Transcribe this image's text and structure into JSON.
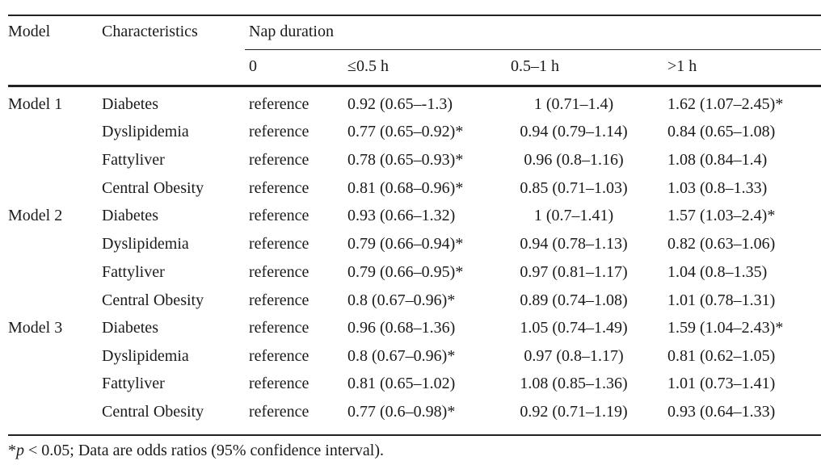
{
  "table": {
    "headers": {
      "model": "Model",
      "characteristics": "Characteristics",
      "nap_duration": "Nap duration",
      "durations": [
        "0",
        "≤0.5 h",
        "0.5–1 h",
        ">1 h"
      ]
    },
    "rows": [
      {
        "model": "Model 1",
        "characteristic": "Diabetes",
        "ref": "reference",
        "v1": "0.92 (0.65–-1.3)",
        "v2": "1 (0.71–1.4)",
        "v3": "1.62 (1.07–2.45)*"
      },
      {
        "model": "",
        "characteristic": "Dyslipidemia",
        "ref": "reference",
        "v1": "0.77 (0.65–0.92)*",
        "v2": "0.94 (0.79–1.14)",
        "v3": "0.84 (0.65–1.08)"
      },
      {
        "model": "",
        "characteristic": "Fattyliver",
        "ref": "reference",
        "v1": "0.78 (0.65–0.93)*",
        "v2": "0.96 (0.8–1.16)",
        "v3": "1.08 (0.84–1.4)"
      },
      {
        "model": "",
        "characteristic": "Central Obesity",
        "ref": "reference",
        "v1": "0.81 (0.68–0.96)*",
        "v2": "0.85 (0.71–1.03)",
        "v3": "1.03 (0.8–1.33)"
      },
      {
        "model": "Model 2",
        "characteristic": "Diabetes",
        "ref": "reference",
        "v1": "0.93 (0.66–1.32)",
        "v2": "1 (0.7–1.41)",
        "v3": "1.57 (1.03–2.4)*"
      },
      {
        "model": "",
        "characteristic": "Dyslipidemia",
        "ref": "reference",
        "v1": "0.79 (0.66–0.94)*",
        "v2": "0.94 (0.78–1.13)",
        "v3": "0.82 (0.63–1.06)"
      },
      {
        "model": "",
        "characteristic": "Fattyliver",
        "ref": "reference",
        "v1": "0.79 (0.66–0.95)*",
        "v2": "0.97 (0.81–1.17)",
        "v3": "1.04 (0.8–1.35)"
      },
      {
        "model": "",
        "characteristic": "Central Obesity",
        "ref": "reference",
        "v1": "0.8 (0.67–0.96)*",
        "v2": "0.89 (0.74–1.08)",
        "v3": "1.01 (0.78–1.31)"
      },
      {
        "model": "Model 3",
        "characteristic": "Diabetes",
        "ref": "reference",
        "v1": "0.96 (0.68–1.36)",
        "v2": "1.05 (0.74–1.49)",
        "v3": "1.59 (1.04–2.43)*"
      },
      {
        "model": "",
        "characteristic": "Dyslipidemia",
        "ref": "reference",
        "v1": "0.8 (0.67–0.96)*",
        "v2": "0.97 (0.8–1.17)",
        "v3": "0.81 (0.62–1.05)"
      },
      {
        "model": "",
        "characteristic": "Fattyliver",
        "ref": "reference",
        "v1": "0.81 (0.65–1.02)",
        "v2": "1.08 (0.85–1.36)",
        "v3": "1.01 (0.73–1.41)"
      },
      {
        "model": "",
        "characteristic": "Central Obesity",
        "ref": "reference",
        "v1": "0.77 (0.6–0.98)*",
        "v2": "0.92 (0.71–1.19)",
        "v3": "0.93 (0.64–1.33)"
      }
    ]
  },
  "footnote": {
    "star": "*",
    "p": "p",
    "rest": " < 0.05; Data are odds ratios (95% confidence interval)."
  }
}
